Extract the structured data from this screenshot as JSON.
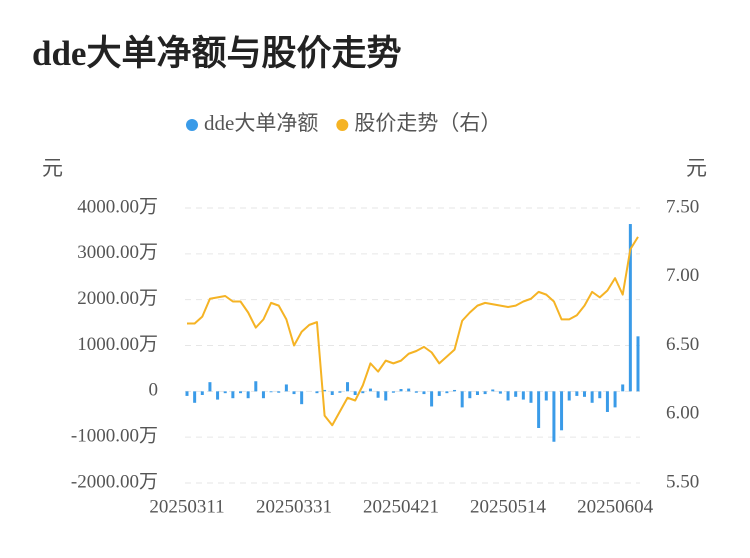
{
  "chart_data": {
    "type": "bar-line",
    "title": "dde大单净额与股价走势",
    "y_label": "元",
    "y2_label": "元",
    "categories": [
      "20250311",
      null,
      null,
      null,
      null,
      null,
      null,
      null,
      null,
      null,
      null,
      null,
      null,
      null,
      "20250331",
      null,
      null,
      null,
      null,
      null,
      null,
      null,
      null,
      null,
      null,
      null,
      null,
      null,
      "20250421",
      null,
      null,
      null,
      null,
      null,
      null,
      null,
      null,
      null,
      null,
      null,
      null,
      null,
      "20250514",
      null,
      null,
      null,
      null,
      null,
      null,
      null,
      null,
      null,
      null,
      null,
      null,
      null,
      "20250604",
      null,
      null,
      null
    ],
    "series": [
      {
        "name": "dde大单净额",
        "type": "bar",
        "color": "#3a9be8",
        "values": [
          -100,
          -250,
          -80,
          200,
          -180,
          -40,
          -150,
          -40,
          -150,
          220,
          -150,
          -20,
          -30,
          150,
          -60,
          -280,
          0,
          -40,
          30,
          -80,
          -30,
          200,
          -80,
          -40,
          60,
          -140,
          -200,
          -30,
          50,
          60,
          -30,
          -60,
          -330,
          -100,
          -40,
          30,
          -350,
          -150,
          -80,
          -60,
          40,
          -50,
          -200,
          -120,
          -180,
          -250,
          -800,
          -200,
          -1100,
          -850,
          -200,
          -100,
          -120,
          -250,
          -150,
          -450,
          -350,
          150,
          3650,
          1200
        ]
      },
      {
        "name": "股价走势（右）",
        "type": "line",
        "axis": "y2",
        "color": "#f5b324",
        "values": [
          6.66,
          6.66,
          6.71,
          6.84,
          6.85,
          6.86,
          6.82,
          6.82,
          6.74,
          6.63,
          6.69,
          6.81,
          6.79,
          6.69,
          6.5,
          6.6,
          6.65,
          6.67,
          5.99,
          5.92,
          6.02,
          6.12,
          6.1,
          6.21,
          6.37,
          6.31,
          6.39,
          6.37,
          6.39,
          6.44,
          6.46,
          6.49,
          6.45,
          6.37,
          6.42,
          6.47,
          6.68,
          6.74,
          6.79,
          6.81,
          6.8,
          6.79,
          6.78,
          6.79,
          6.82,
          6.84,
          6.89,
          6.87,
          6.82,
          6.69,
          6.69,
          6.72,
          6.79,
          6.89,
          6.85,
          6.9,
          6.99,
          6.87,
          7.2,
          7.29
        ]
      }
    ],
    "ylim": [
      -2000,
      4000
    ],
    "yticks": [
      {
        "value": 4000,
        "label": "4000.00万"
      },
      {
        "value": 3000,
        "label": "3000.00万"
      },
      {
        "value": 2000,
        "label": "2000.00万"
      },
      {
        "value": 1000,
        "label": "1000.00万"
      },
      0,
      {
        "value": -1000,
        "label": "-1000.00万"
      },
      {
        "value": -2000,
        "label": "-2000.00万"
      }
    ],
    "y2lim": [
      5.5,
      7.5
    ],
    "y2ticks": [
      {
        "value": 7.5,
        "label": "7.50"
      },
      {
        "value": 7,
        "label": "7.00"
      },
      {
        "value": 6.5,
        "label": "6.50"
      },
      {
        "value": 6,
        "label": "6.00"
      },
      {
        "value": 5.5,
        "label": "5.50"
      }
    ],
    "grid": true
  }
}
